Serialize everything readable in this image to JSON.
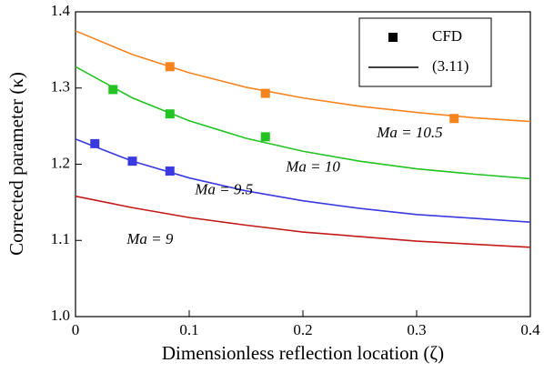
{
  "chart_data": {
    "type": "line",
    "x_label": "Dimensionless reflection location (ζ)",
    "y_label": "Corrected parameter (κ)",
    "xlim": [
      0,
      0.4
    ],
    "ylim": [
      1.0,
      1.4
    ],
    "xticks": [
      0,
      0.1,
      0.2,
      0.3,
      0.4
    ],
    "yticks": [
      {
        "value": 1,
        "label": "1.0"
      },
      1.1,
      1.2,
      1.3,
      1.4
    ],
    "grid": false,
    "legend": {
      "position": "upper right",
      "entries": [
        {
          "label": "CFD",
          "marker": "square"
        },
        {
          "label": "(3.11)",
          "marker": "line"
        }
      ]
    },
    "x": [
      0,
      0.05,
      0.1,
      0.15,
      0.2,
      0.25,
      0.3,
      0.35,
      0.4
    ],
    "series": [
      {
        "label": "Ma = 10.5",
        "color": "#f5841f",
        "values": [
          1.375,
          1.344,
          1.32,
          1.301,
          1.287,
          1.276,
          1.268,
          1.261,
          1.256
        ],
        "cfd_x": [
          0.083,
          0.167,
          0.333
        ],
        "cfd_values": [
          1.328,
          1.293,
          1.26
        ]
      },
      {
        "label": "Ma = 10",
        "color": "#22c322",
        "values": [
          1.328,
          1.287,
          1.257,
          1.234,
          1.217,
          1.204,
          1.194,
          1.187,
          1.181
        ],
        "cfd_x": [
          0.033,
          0.083,
          0.167
        ],
        "cfd_values": [
          1.298,
          1.266,
          1.236
        ]
      },
      {
        "label": "Ma = 9.5",
        "color": "#3a3ae0",
        "values": [
          1.233,
          1.204,
          1.182,
          1.165,
          1.152,
          1.142,
          1.134,
          1.129,
          1.124
        ],
        "cfd_x": [
          0.017,
          0.05,
          0.083
        ],
        "cfd_values": [
          1.227,
          1.204,
          1.191
        ]
      },
      {
        "label": "Ma = 9",
        "color": "#c41a1a",
        "values": [
          1.158,
          1.143,
          1.13,
          1.12,
          1.111,
          1.105,
          1.099,
          1.095,
          1.091
        ],
        "cfd_x": [],
        "cfd_values": []
      }
    ]
  }
}
